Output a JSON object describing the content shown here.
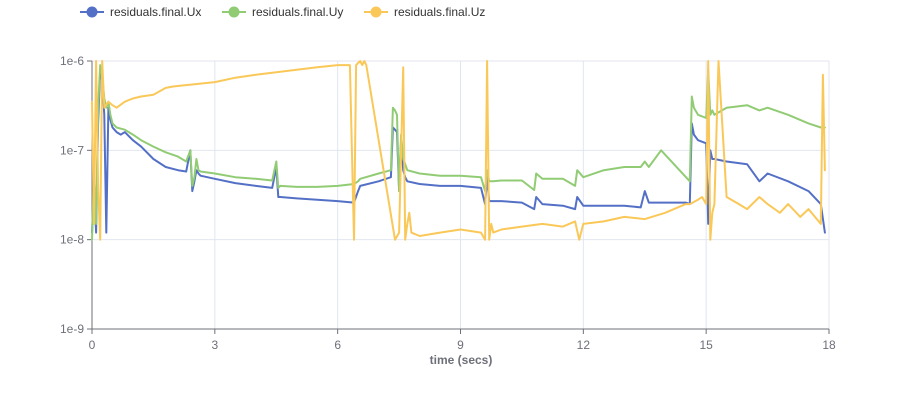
{
  "chart_data": {
    "type": "line",
    "xlabel": "time (secs)",
    "ylabel": "",
    "x_range": [
      0,
      18
    ],
    "y_range": [
      1e-09,
      1e-06
    ],
    "y_scale": "log",
    "grid": true,
    "legend_position": "top-left",
    "x_ticks": [
      "0",
      "3",
      "6",
      "9",
      "12",
      "15",
      "18"
    ],
    "y_ticks": [
      "1e-9",
      "1e-8",
      "1e-7",
      "1e-6"
    ],
    "series": [
      {
        "name": "residuals.final.Ux",
        "color": "#5470c6",
        "x": [
          0,
          0.05,
          0.1,
          0.15,
          0.2,
          0.25,
          0.3,
          0.35,
          0.4,
          0.45,
          0.5,
          0.6,
          0.7,
          0.8,
          1,
          1.2,
          1.5,
          1.8,
          2.1,
          2.3,
          2.4,
          2.45,
          2.5,
          2.55,
          2.6,
          2.65,
          3,
          3.5,
          4,
          4.4,
          4.5,
          4.55,
          4.6,
          5,
          5.5,
          6,
          6.4,
          6.5,
          6.55,
          7,
          7.3,
          7.35,
          7.4,
          7.45,
          7.5,
          7.55,
          7.6,
          7.65,
          7.7,
          8,
          8.5,
          9,
          9.5,
          9.6,
          9.65,
          9.7,
          9.8,
          10,
          10.5,
          10.8,
          10.85,
          11,
          11.5,
          11.8,
          11.85,
          12,
          12.5,
          13,
          13.4,
          13.5,
          13.6,
          14,
          14.5,
          14.6,
          14.65,
          14.7,
          14.8,
          15,
          15.05,
          15.1,
          15.15,
          15.2,
          15.5,
          16,
          16.3,
          16.5,
          17,
          17.5,
          17.8,
          17.9
        ],
        "values": [
          1.2e-08,
          4e-08,
          1.2e-08,
          2e-07,
          8e-07,
          6e-07,
          2.5e-07,
          1.2e-08,
          3e-07,
          2.2e-07,
          1.8e-07,
          1.6e-07,
          1.5e-07,
          1.6e-07,
          1.3e-07,
          1.1e-07,
          8e-08,
          6.5e-08,
          6e-08,
          5.8e-08,
          1e-07,
          3.5e-08,
          4.5e-08,
          6e-08,
          5.5e-08,
          5.2e-08,
          4.8e-08,
          4.3e-08,
          4e-08,
          3.8e-08,
          6.5e-08,
          3e-08,
          3e-08,
          2.9e-08,
          2.8e-08,
          2.7e-08,
          2.6e-08,
          3.5e-08,
          4e-08,
          4.5e-08,
          5e-08,
          1.8e-07,
          1.7e-07,
          1.6e-07,
          3.5e-08,
          1.3e-07,
          6e-08,
          5e-08,
          4.5e-08,
          4.2e-08,
          4e-08,
          4e-08,
          3.8e-08,
          2.5e-08,
          5e-08,
          2.7e-08,
          2.7e-08,
          2.7e-08,
          2.6e-08,
          2.2e-08,
          3e-08,
          2.5e-08,
          2.4e-08,
          2.2e-08,
          3e-08,
          2.4e-08,
          2.4e-08,
          2.4e-08,
          2.3e-08,
          3.5e-08,
          2.6e-08,
          2.6e-08,
          2.6e-08,
          2.5e-08,
          2e-07,
          1.5e-07,
          1.3e-07,
          1.2e-07,
          1.5e-08,
          1e-07,
          8e-08,
          8e-08,
          7.5e-08,
          7e-08,
          4.5e-08,
          5.5e-08,
          4.5e-08,
          3.5e-08,
          2.5e-08,
          1.2e-08
        ]
      },
      {
        "name": "residuals.final.Uy",
        "color": "#91cc75",
        "x": [
          0,
          0.05,
          0.1,
          0.15,
          0.2,
          0.25,
          0.3,
          0.35,
          0.4,
          0.45,
          0.5,
          0.6,
          0.8,
          1,
          1.2,
          1.5,
          1.8,
          2.1,
          2.3,
          2.4,
          2.45,
          2.5,
          2.55,
          2.6,
          2.65,
          3,
          3.5,
          4,
          4.4,
          4.5,
          4.55,
          4.6,
          5,
          5.5,
          6,
          6.4,
          6.5,
          6.55,
          7,
          7.3,
          7.35,
          7.4,
          7.45,
          7.5,
          7.55,
          7.6,
          7.65,
          7.7,
          8,
          8.5,
          9,
          9.5,
          9.6,
          9.65,
          9.7,
          9.8,
          10,
          10.5,
          10.8,
          10.85,
          11,
          11.5,
          11.8,
          11.85,
          12,
          12.5,
          13,
          13.4,
          13.5,
          13.6,
          13.9,
          14.6,
          14.65,
          14.7,
          14.8,
          15,
          15.05,
          15.1,
          15.15,
          15.2,
          15.5,
          16,
          16.3,
          16.5,
          17,
          17.5,
          17.8,
          17.9
        ],
        "values": [
          1e-08,
          6e-08,
          1.5e-08,
          3e-07,
          9e-07,
          7e-07,
          3.8e-07,
          3e-07,
          3.5e-07,
          2.5e-07,
          2e-07,
          1.8e-07,
          1.7e-07,
          1.5e-07,
          1.3e-07,
          1.1e-07,
          9.5e-08,
          8.5e-08,
          7.5e-08,
          1e-07,
          4e-08,
          5e-08,
          8e-08,
          6e-08,
          5.8e-08,
          5.5e-08,
          5e-08,
          4.8e-08,
          4.6e-08,
          7.5e-08,
          3.8e-08,
          4e-08,
          3.9e-08,
          3.9e-08,
          4e-08,
          4.2e-08,
          4.5e-08,
          4.8e-08,
          5.5e-08,
          6e-08,
          3e-07,
          2.8e-07,
          2.5e-07,
          3.5e-08,
          1.5e-07,
          8e-08,
          7e-08,
          6e-08,
          5.5e-08,
          5.2e-08,
          5.2e-08,
          5e-08,
          3.5e-08,
          6e-08,
          4.5e-08,
          4.5e-08,
          4.6e-08,
          4.6e-08,
          3.6e-08,
          5.5e-08,
          4.8e-08,
          4.8e-08,
          4e-08,
          6e-08,
          5e-08,
          6e-08,
          6.5e-08,
          6.5e-08,
          7.5e-08,
          6.5e-08,
          1e-07,
          4.5e-08,
          4e-07,
          3e-07,
          2.5e-07,
          2.3e-07,
          8e-07,
          2.5e-07,
          2.8e-07,
          2.5e-07,
          3e-07,
          3.2e-07,
          2.8e-07,
          3e-07,
          2.5e-07,
          2e-07,
          1.8e-07,
          1.8e-07
        ]
      },
      {
        "name": "residuals.final.Uz",
        "color": "#fac858",
        "x": [
          0,
          0.05,
          0.1,
          0.15,
          0.2,
          0.25,
          0.3,
          0.4,
          0.5,
          0.6,
          0.8,
          1,
          1.2,
          1.5,
          1.8,
          2,
          2.5,
          3,
          3.5,
          4,
          4.5,
          5,
          5.5,
          6,
          6.3,
          6.4,
          6.45,
          6.5,
          6.55,
          6.6,
          6.65,
          6.7,
          7.4,
          7.5,
          7.6,
          7.65,
          7.7,
          7.75,
          7.8,
          8,
          8.5,
          9,
          9.5,
          9.6,
          9.65,
          9.7,
          9.75,
          9.8,
          10,
          10.5,
          11,
          11.5,
          11.8,
          11.9,
          12,
          12.5,
          13,
          13.5,
          14,
          14.5,
          14.6,
          14.8,
          14.9,
          15,
          15.05,
          15.1,
          15.15,
          15.2,
          15.3,
          15.5,
          15.8,
          16,
          16.3,
          16.5,
          16.8,
          17,
          17.3,
          17.5,
          17.8,
          17.85,
          17.9
        ],
        "values": [
          3.5e-07,
          1.5e-08,
          1e-06,
          4e-08,
          1e-08,
          1e-06,
          3e-07,
          3.5e-07,
          3.2e-07,
          3e-07,
          3.5e-07,
          3.8e-07,
          4e-07,
          4.2e-07,
          5e-07,
          5.2e-07,
          5.5e-07,
          5.8e-07,
          6.5e-07,
          7e-07,
          7.5e-07,
          8e-07,
          8.5e-07,
          9e-07,
          9e-07,
          1e-08,
          9e-07,
          9.5e-07,
          1e-06,
          9e-07,
          1e-06,
          9e-07,
          1e-08,
          1.2e-08,
          8.5e-07,
          1e-08,
          1.5e-08,
          2e-08,
          1.2e-08,
          1.1e-08,
          1.2e-08,
          1.3e-08,
          1.2e-08,
          1e-08,
          1e-06,
          1e-08,
          1.5e-08,
          1.2e-08,
          1.3e-08,
          1.4e-08,
          1.5e-08,
          1.4e-08,
          1.6e-08,
          1e-08,
          1.5e-08,
          1.6e-08,
          1.8e-08,
          1.7e-08,
          2e-08,
          2.5e-08,
          2.5e-08,
          2.8e-08,
          3e-08,
          2.5e-08,
          1e-06,
          1e-08,
          2e-08,
          2.5e-08,
          1e-06,
          3e-08,
          2.5e-08,
          2.2e-08,
          3e-08,
          2.5e-08,
          2e-08,
          2.5e-08,
          1.8e-08,
          2.2e-08,
          1.5e-08,
          7e-07,
          6e-08
        ]
      }
    ]
  }
}
